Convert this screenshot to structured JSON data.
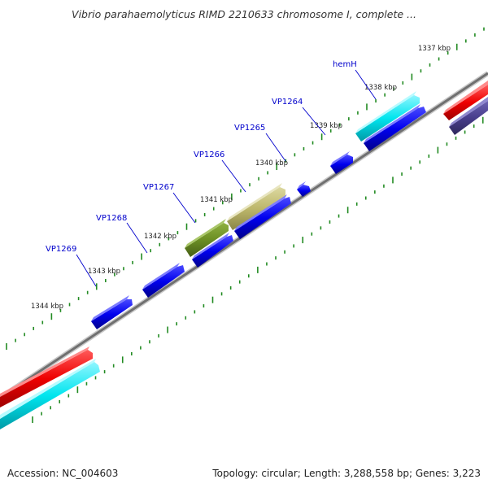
{
  "title": "Vibrio parahaemolyticus RIMD 2210633 chromosome I, complete ...",
  "footer": {
    "accession": "Accession: NC_004603",
    "summary": "Topology: circular; Length: 3,288,558 bp; Genes: 3,223"
  },
  "colors": {
    "backbone": "#808080",
    "tick": "#228b22",
    "gene_label": "#0000cc",
    "blue": "#0000ee",
    "cyan": "#00e5ee",
    "red": "#ee0000",
    "olive": "#6b8e23",
    "khaki": "#bdb76b",
    "slate": "#483d8b"
  },
  "ruler": {
    "kbp_labels": [
      "1337 kbp",
      "1338 kbp",
      "1339 kbp",
      "1340 kbp",
      "1341 kbp",
      "1342 kbp",
      "1343 kbp",
      "1344 kbp"
    ]
  },
  "genes": [
    {
      "label": "hemH",
      "color": "cyan"
    },
    {
      "label": "VP1264",
      "color": "blue"
    },
    {
      "label": "VP1265",
      "color": "blue"
    },
    {
      "label": "VP1266",
      "color": "khaki"
    },
    {
      "label": "VP1267",
      "color": "olive"
    },
    {
      "label": "VP1268",
      "color": "blue"
    },
    {
      "label": "VP1269",
      "color": "blue"
    }
  ]
}
